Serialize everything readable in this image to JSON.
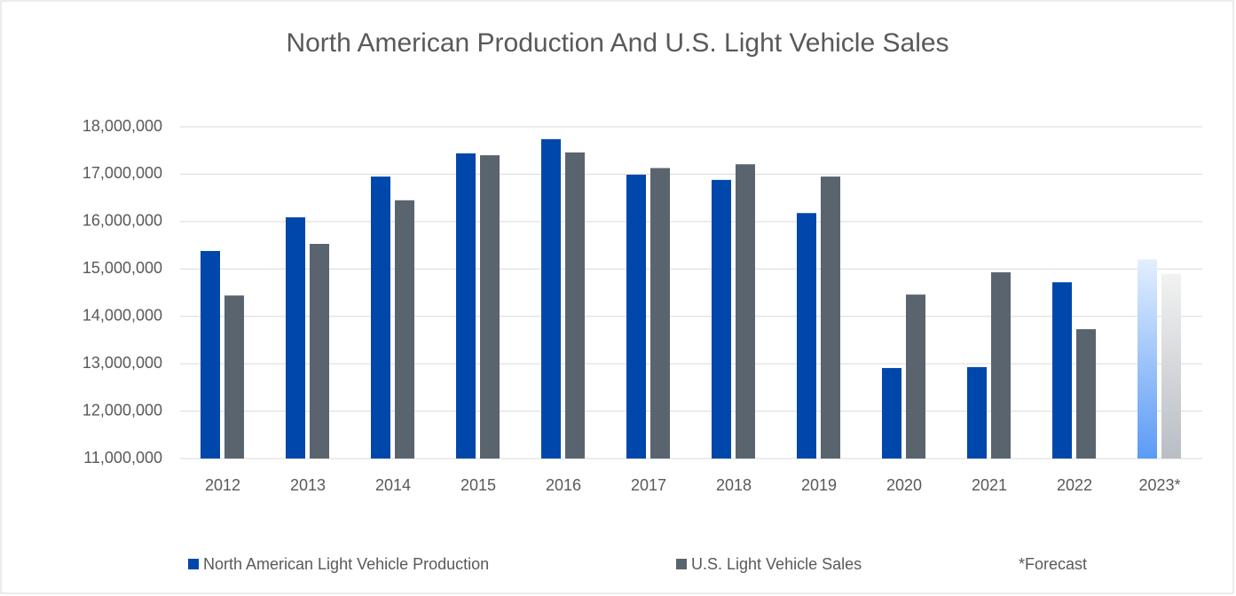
{
  "chart_data": {
    "type": "bar",
    "title": "North American Production And U.S. Light Vehicle Sales",
    "categories": [
      "2012",
      "2013",
      "2014",
      "2015",
      "2016",
      "2017",
      "2018",
      "2019",
      "2020",
      "2021",
      "2022",
      "2023*"
    ],
    "series": [
      {
        "name": "North American Light Vehicle Production",
        "color": "#0047ab",
        "forecast_color": "#e3efff",
        "values": [
          15380000,
          16090000,
          16950000,
          17440000,
          17740000,
          16990000,
          16880000,
          16180000,
          12910000,
          12930000,
          14720000,
          15200000
        ]
      },
      {
        "name": "U.S. Light Vehicle Sales",
        "color": "#5a646e",
        "forecast_color": "#f2f2f2",
        "values": [
          14440000,
          15530000,
          16450000,
          17400000,
          17460000,
          17130000,
          17210000,
          16950000,
          14460000,
          14930000,
          13730000,
          14900000
        ]
      }
    ],
    "annotation": "*Forecast",
    "ylim": [
      11000000,
      18000000
    ],
    "yticks": [
      {
        "value": 11000000,
        "label": "11,000,000"
      },
      {
        "value": 12000000,
        "label": "12,000,000"
      },
      {
        "value": 13000000,
        "label": "13,000,000"
      },
      {
        "value": 14000000,
        "label": "14,000,000"
      },
      {
        "value": 15000000,
        "label": "15,000,000"
      },
      {
        "value": 16000000,
        "label": "16,000,000"
      },
      {
        "value": 17000000,
        "label": "17,000,000"
      },
      {
        "value": 18000000,
        "label": "18,000,000"
      }
    ],
    "grid": true,
    "legend": "bottom"
  }
}
